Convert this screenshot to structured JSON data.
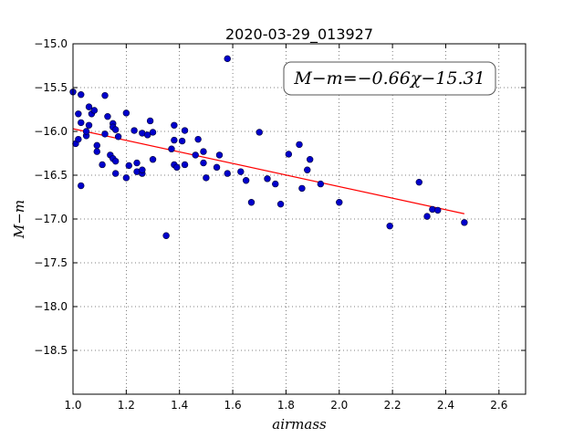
{
  "chart_data": {
    "type": "scatter",
    "title": "2020-03-29_013927",
    "xlabel": "airmass",
    "ylabel": "M−m",
    "xlim": [
      1.0,
      2.7
    ],
    "ylim": [
      -19.0,
      -15.0
    ],
    "y_inverted": true,
    "grid": true,
    "x_ticks": [
      1.0,
      1.2,
      1.4,
      1.6,
      1.8,
      2.0,
      2.2,
      2.4,
      2.6
    ],
    "x_tick_labels": [
      "1.0",
      "1.2",
      "1.4",
      "1.6",
      "1.8",
      "2.0",
      "2.2",
      "2.4",
      "2.6"
    ],
    "y_ticks": [
      -15.0,
      -15.5,
      -16.0,
      -16.5,
      -17.0,
      -17.5,
      -18.0,
      -18.5
    ],
    "y_tick_labels": [
      "−15.0",
      "−15.5",
      "−16.0",
      "−16.5",
      "−17.0",
      "−17.5",
      "−18.0",
      "−18.5"
    ],
    "annotation": "M−m=−0.66χ−15.31",
    "fit": {
      "slope": -0.66,
      "intercept": -15.31,
      "x_range": [
        1.0,
        2.47
      ],
      "color": "#ff0000"
    },
    "point_color": "#0000cc",
    "points": [
      [
        1.0,
        -15.55
      ],
      [
        1.01,
        -16.14
      ],
      [
        1.02,
        -15.8
      ],
      [
        1.02,
        -16.09
      ],
      [
        1.03,
        -15.58
      ],
      [
        1.03,
        -15.9
      ],
      [
        1.03,
        -16.62
      ],
      [
        1.05,
        -16.05
      ],
      [
        1.05,
        -16.0
      ],
      [
        1.06,
        -15.93
      ],
      [
        1.06,
        -15.72
      ],
      [
        1.07,
        -15.8
      ],
      [
        1.08,
        -15.76
      ],
      [
        1.09,
        -16.23
      ],
      [
        1.09,
        -16.16
      ],
      [
        1.11,
        -16.38
      ],
      [
        1.12,
        -15.59
      ],
      [
        1.12,
        -16.03
      ],
      [
        1.13,
        -15.83
      ],
      [
        1.14,
        -16.27
      ],
      [
        1.15,
        -15.91
      ],
      [
        1.15,
        -15.95
      ],
      [
        1.15,
        -16.31
      ],
      [
        1.16,
        -15.98
      ],
      [
        1.16,
        -16.48
      ],
      [
        1.16,
        -16.34
      ],
      [
        1.17,
        -16.06
      ],
      [
        1.2,
        -15.79
      ],
      [
        1.2,
        -16.53
      ],
      [
        1.21,
        -16.39
      ],
      [
        1.23,
        -15.99
      ],
      [
        1.24,
        -16.46
      ],
      [
        1.24,
        -16.36
      ],
      [
        1.26,
        -16.02
      ],
      [
        1.26,
        -16.48
      ],
      [
        1.26,
        -16.44
      ],
      [
        1.28,
        -16.04
      ],
      [
        1.29,
        -15.88
      ],
      [
        1.3,
        -16.32
      ],
      [
        1.3,
        -16.01
      ],
      [
        1.35,
        -17.19
      ],
      [
        1.37,
        -16.2
      ],
      [
        1.38,
        -15.93
      ],
      [
        1.38,
        -16.1
      ],
      [
        1.38,
        -16.38
      ],
      [
        1.39,
        -16.41
      ],
      [
        1.41,
        -16.11
      ],
      [
        1.42,
        -16.38
      ],
      [
        1.42,
        -15.99
      ],
      [
        1.46,
        -16.27
      ],
      [
        1.47,
        -16.09
      ],
      [
        1.49,
        -16.36
      ],
      [
        1.49,
        -16.23
      ],
      [
        1.5,
        -16.53
      ],
      [
        1.54,
        -16.41
      ],
      [
        1.55,
        -16.27
      ],
      [
        1.58,
        -15.17
      ],
      [
        1.58,
        -16.48
      ],
      [
        1.63,
        -16.46
      ],
      [
        1.65,
        -16.56
      ],
      [
        1.67,
        -16.81
      ],
      [
        1.7,
        -16.01
      ],
      [
        1.73,
        -16.54
      ],
      [
        1.76,
        -16.6
      ],
      [
        1.78,
        -16.83
      ],
      [
        1.81,
        -16.26
      ],
      [
        1.85,
        -16.15
      ],
      [
        1.86,
        -16.65
      ],
      [
        1.88,
        -16.44
      ],
      [
        1.89,
        -16.32
      ],
      [
        1.93,
        -16.6
      ],
      [
        2.0,
        -16.81
      ],
      [
        2.19,
        -17.08
      ],
      [
        2.3,
        -16.58
      ],
      [
        2.33,
        -16.97
      ],
      [
        2.35,
        -16.89
      ],
      [
        2.37,
        -16.9
      ],
      [
        2.47,
        -17.04
      ]
    ]
  }
}
